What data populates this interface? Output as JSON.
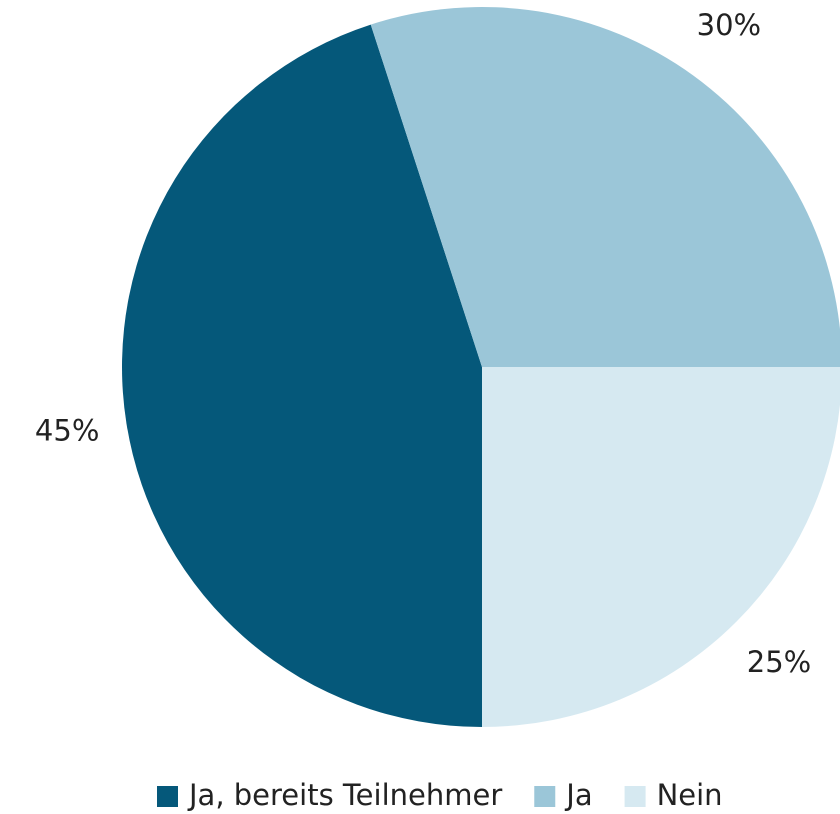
{
  "chart_data": {
    "type": "pie",
    "categories": [
      "Ja, bereits Teilnehmer",
      "Ja",
      "Nein"
    ],
    "values": [
      45,
      30,
      25
    ],
    "value_labels": [
      "45%",
      "30%",
      "25%"
    ],
    "colors": [
      "#05587a",
      "#9bc6d8",
      "#d6e9f1"
    ],
    "legend": "bottom"
  }
}
